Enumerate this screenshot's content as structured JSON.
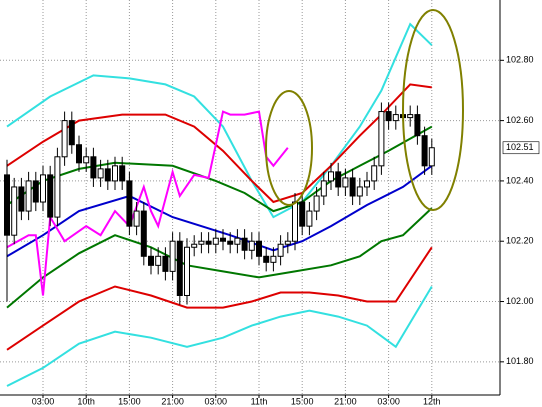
{
  "chart_data": {
    "type": "candlestick",
    "categories": [
      null,
      null,
      null,
      null,
      null,
      "03:00",
      null,
      null,
      null,
      null,
      null,
      "10th",
      null,
      null,
      null,
      null,
      null,
      "15:00",
      null,
      null,
      null,
      null,
      null,
      "21:00",
      null,
      null,
      null,
      null,
      null,
      "03:00",
      null,
      null,
      null,
      null,
      null,
      "11th",
      null,
      null,
      null,
      null,
      null,
      "15:00",
      null,
      null,
      null,
      null,
      null,
      "21:00",
      null,
      null,
      null,
      null,
      null,
      "03:00",
      null,
      null,
      null,
      null,
      null,
      "12th"
    ],
    "ohlc": {
      "open": [
        102.42,
        102.22,
        102.38,
        102.3,
        102.4,
        102.33,
        102.42,
        102.28,
        102.48,
        102.6,
        102.52,
        102.46,
        102.48,
        102.41,
        102.44,
        102.4,
        102.45,
        102.4,
        102.25,
        102.3,
        102.15,
        102.12,
        102.15,
        102.1,
        102.2,
        102.02,
        102.18,
        102.19,
        102.2,
        102.19,
        102.21,
        102.2,
        102.19,
        102.21,
        102.17,
        102.2,
        102.15,
        102.13,
        102.15,
        102.19,
        102.2,
        102.33,
        102.25,
        102.3,
        102.35,
        102.4,
        102.43,
        102.38,
        102.41,
        102.35,
        102.38,
        102.4,
        102.45,
        102.63,
        102.6,
        102.62,
        102.61,
        102.62,
        102.55,
        102.45
      ],
      "high": [
        102.47,
        102.41,
        102.41,
        102.43,
        102.43,
        102.45,
        102.45,
        102.51,
        102.63,
        102.63,
        102.55,
        102.51,
        102.51,
        102.47,
        102.47,
        102.48,
        102.48,
        102.43,
        102.33,
        102.33,
        102.18,
        102.18,
        102.18,
        102.23,
        102.23,
        102.21,
        102.22,
        102.23,
        102.23,
        102.24,
        102.24,
        102.23,
        102.24,
        102.24,
        102.23,
        102.23,
        102.18,
        102.18,
        102.22,
        102.23,
        102.36,
        102.36,
        102.33,
        102.38,
        102.43,
        102.46,
        102.46,
        102.44,
        102.44,
        102.41,
        102.43,
        102.48,
        102.66,
        102.66,
        102.65,
        102.65,
        102.65,
        102.65,
        102.58,
        102.54
      ],
      "low": [
        102.0,
        102.19,
        102.27,
        102.27,
        102.3,
        102.3,
        102.25,
        102.25,
        102.45,
        102.49,
        102.43,
        102.43,
        102.38,
        102.38,
        102.37,
        102.37,
        102.37,
        102.22,
        102.22,
        102.12,
        102.09,
        102.09,
        102.07,
        102.07,
        101.99,
        101.99,
        102.15,
        102.16,
        102.16,
        102.16,
        102.17,
        102.16,
        102.16,
        102.14,
        102.14,
        102.12,
        102.1,
        102.1,
        102.12,
        102.16,
        102.17,
        102.22,
        102.22,
        102.27,
        102.32,
        102.37,
        102.35,
        102.35,
        102.32,
        102.32,
        102.35,
        102.37,
        102.42,
        102.57,
        102.57,
        102.58,
        102.58,
        102.52,
        102.42,
        102.42
      ],
      "close": [
        102.22,
        102.38,
        102.3,
        102.4,
        102.33,
        102.42,
        102.28,
        102.48,
        102.6,
        102.52,
        102.46,
        102.48,
        102.41,
        102.44,
        102.4,
        102.45,
        102.4,
        102.25,
        102.3,
        102.15,
        102.12,
        102.15,
        102.1,
        102.2,
        102.02,
        102.18,
        102.19,
        102.2,
        102.19,
        102.21,
        102.2,
        102.19,
        102.21,
        102.17,
        102.2,
        102.15,
        102.13,
        102.15,
        102.19,
        102.2,
        102.33,
        102.25,
        102.3,
        102.35,
        102.4,
        102.43,
        102.38,
        102.41,
        102.35,
        102.38,
        102.4,
        102.45,
        102.63,
        102.6,
        102.62,
        102.61,
        102.62,
        102.55,
        102.45,
        102.51
      ]
    },
    "series": [
      {
        "color": "#33e0e0",
        "x": [
          0,
          6,
          12,
          17,
          22,
          26,
          30,
          34,
          37,
          41,
          45,
          49,
          52,
          56,
          59
        ],
        "values": [
          102.58,
          102.68,
          102.75,
          102.74,
          102.72,
          102.68,
          102.58,
          102.4,
          102.28,
          102.33,
          102.45,
          102.58,
          102.7,
          102.92,
          102.85
        ]
      },
      {
        "color": "#dd0000",
        "x": [
          0,
          5,
          10,
          16,
          22,
          26,
          30,
          34,
          37,
          41,
          45,
          49,
          52,
          56,
          59
        ],
        "values": [
          102.45,
          102.53,
          102.6,
          102.62,
          102.62,
          102.58,
          102.5,
          102.4,
          102.33,
          102.36,
          102.45,
          102.55,
          102.62,
          102.72,
          102.71
        ]
      },
      {
        "color": "#007700",
        "x": [
          0,
          5,
          10,
          15,
          23,
          29,
          33,
          37,
          41,
          45,
          49,
          53,
          59
        ],
        "values": [
          102.32,
          102.4,
          102.44,
          102.46,
          102.45,
          102.4,
          102.36,
          102.3,
          102.33,
          102.4,
          102.45,
          102.5,
          102.58
        ]
      },
      {
        "color": "#0000cc",
        "x": [
          0,
          5,
          10,
          17,
          23,
          31,
          37,
          41,
          45,
          50,
          55,
          59
        ],
        "values": [
          102.15,
          102.22,
          102.3,
          102.35,
          102.28,
          102.22,
          102.17,
          102.2,
          102.25,
          102.32,
          102.38,
          102.45
        ]
      },
      {
        "color": "#007700",
        "x": [
          0,
          5,
          10,
          15,
          20,
          25,
          30,
          35,
          40,
          45,
          49,
          52,
          55,
          59
        ],
        "values": [
          101.98,
          102.08,
          102.16,
          102.22,
          102.18,
          102.12,
          102.1,
          102.08,
          102.1,
          102.12,
          102.15,
          102.2,
          102.22,
          102.31
        ]
      },
      {
        "color": "#dd0000",
        "x": [
          0,
          5,
          10,
          15,
          20,
          25,
          30,
          34,
          38,
          42,
          46,
          50,
          54,
          59
        ],
        "values": [
          101.84,
          101.92,
          102.0,
          102.05,
          102.02,
          101.98,
          101.98,
          102.0,
          102.03,
          102.03,
          102.02,
          102.0,
          102.0,
          102.18
        ]
      },
      {
        "color": "#33e0e0",
        "x": [
          0,
          5,
          10,
          15,
          20,
          25,
          30,
          34,
          38,
          42,
          46,
          50,
          54,
          59
        ],
        "values": [
          101.72,
          101.78,
          101.86,
          101.9,
          101.88,
          101.85,
          101.88,
          101.92,
          101.95,
          101.97,
          101.95,
          101.92,
          101.85,
          102.05
        ]
      },
      {
        "color": "#ff00ff",
        "x": [
          0,
          3,
          4,
          5,
          6,
          8,
          11,
          13,
          15,
          17,
          19,
          20,
          21,
          23,
          24,
          26,
          28,
          30,
          31,
          33,
          35,
          36,
          37,
          39
        ],
        "values": [
          102.18,
          102.22,
          102.22,
          102.02,
          102.28,
          102.2,
          102.25,
          102.22,
          102.3,
          102.25,
          102.38,
          102.3,
          102.25,
          102.43,
          102.35,
          102.42,
          102.41,
          102.63,
          102.62,
          102.62,
          102.63,
          102.48,
          102.45,
          102.51
        ]
      }
    ],
    "current_price": 102.51,
    "ylim": [
      101.69,
      103.0
    ],
    "yticks": [
      {
        "value": 101.8,
        "label": "101.80"
      },
      {
        "value": 102.0,
        "label": "102.00"
      },
      {
        "value": 102.2,
        "label": "102.20"
      },
      {
        "value": 102.4,
        "label": "102.40"
      },
      {
        "value": 102.6,
        "label": "102.60"
      },
      {
        "value": 102.8,
        "label": "102.80"
      }
    ],
    "grid": true,
    "up_color": "#ffffff",
    "down_color": "#000000"
  }
}
